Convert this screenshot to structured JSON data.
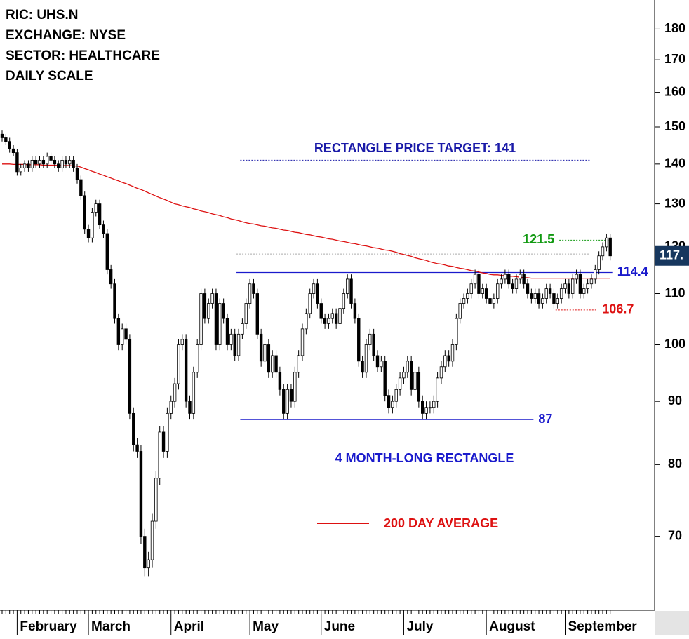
{
  "chart_data": {
    "type": "candlestick",
    "header": [
      "RIC: UHS.N",
      "EXCHANGE: NYSE",
      "SECTOR: HEALTHCARE",
      "DAILY SCALE"
    ],
    "categories": [
      null,
      null,
      null,
      null,
      "February",
      null,
      null,
      null,
      null,
      null,
      null,
      null,
      null,
      null,
      null,
      null,
      null,
      null,
      null,
      null,
      null,
      null,
      null,
      "March",
      null,
      null,
      null,
      null,
      null,
      null,
      null,
      null,
      null,
      null,
      null,
      null,
      null,
      null,
      null,
      null,
      null,
      null,
      null,
      null,
      null,
      "April",
      null,
      null,
      null,
      null,
      null,
      null,
      null,
      null,
      null,
      null,
      null,
      null,
      null,
      null,
      null,
      null,
      null,
      null,
      null,
      null,
      "May",
      null,
      null,
      null,
      null,
      null,
      null,
      null,
      null,
      null,
      null,
      null,
      null,
      null,
      null,
      null,
      null,
      null,
      null,
      "June",
      null,
      null,
      null,
      null,
      null,
      null,
      null,
      null,
      null,
      null,
      null,
      null,
      null,
      null,
      null,
      null,
      null,
      null,
      null,
      null,
      null,
      "July",
      null,
      null,
      null,
      null,
      null,
      null,
      null,
      null,
      null,
      null,
      null,
      null,
      null,
      null,
      null,
      null,
      null,
      null,
      null,
      null,
      null,
      "August",
      null,
      null,
      null,
      null,
      null,
      null,
      null,
      null,
      null,
      null,
      null,
      null,
      null,
      null,
      null,
      null,
      null,
      null,
      null,
      null,
      "September",
      null,
      null,
      null,
      null,
      null,
      null,
      null,
      null,
      null,
      null,
      null,
      null
    ],
    "open": [
      148,
      147,
      146,
      144,
      143,
      138,
      139,
      140,
      139,
      141,
      140,
      141,
      140,
      142,
      141,
      140,
      139,
      141,
      140,
      141,
      139,
      136,
      132,
      124,
      122,
      128,
      130,
      125,
      123,
      115,
      112,
      105,
      100,
      103,
      101,
      88,
      83,
      82,
      70,
      66,
      67,
      72,
      78,
      85,
      82,
      88,
      90,
      93,
      100,
      101,
      90,
      88,
      95,
      100,
      110,
      105,
      108,
      110,
      100,
      108,
      105,
      100,
      102,
      98,
      102,
      104,
      108,
      112,
      110,
      102,
      97,
      100,
      95,
      98,
      95,
      92,
      88,
      92,
      90,
      95,
      98,
      103,
      106,
      110,
      112,
      108,
      105,
      104,
      105,
      106,
      104,
      107,
      110,
      113,
      108,
      105,
      97,
      95,
      100,
      102,
      98,
      96,
      97,
      91,
      89,
      90,
      92,
      94,
      95,
      97,
      92,
      95,
      90,
      88,
      89,
      89,
      90,
      94,
      96,
      98,
      97,
      100,
      105,
      108,
      109,
      110,
      112,
      114,
      110,
      111,
      109,
      108,
      109,
      112,
      113,
      114,
      112,
      111,
      113,
      114,
      112,
      110,
      109,
      110,
      108,
      109,
      111,
      110,
      108,
      109,
      111,
      112,
      110,
      113,
      114,
      110,
      111,
      112,
      113,
      115,
      118,
      120,
      122
    ],
    "high": [
      149,
      148,
      147,
      145,
      144,
      140,
      141,
      141,
      142,
      142,
      142,
      142,
      143,
      143,
      142,
      141,
      142,
      142,
      142,
      142,
      140,
      137,
      133,
      125,
      129,
      131,
      131,
      126,
      124,
      116,
      113,
      106,
      104,
      104,
      102,
      89,
      84,
      83,
      71,
      68,
      73,
      79,
      86,
      86,
      89,
      91,
      94,
      101,
      102,
      102,
      91,
      96,
      101,
      111,
      111,
      109,
      111,
      111,
      109,
      109,
      106,
      103,
      103,
      103,
      105,
      109,
      113,
      113,
      111,
      103,
      101,
      101,
      99,
      99,
      96,
      93,
      93,
      93,
      96,
      99,
      104,
      107,
      111,
      113,
      113,
      109,
      106,
      106,
      107,
      107,
      108,
      111,
      114,
      114,
      109,
      106,
      98,
      101,
      103,
      103,
      99,
      98,
      98,
      92,
      91,
      93,
      95,
      96,
      98,
      98,
      96,
      96,
      91,
      90,
      90,
      91,
      95,
      97,
      99,
      99,
      101,
      106,
      109,
      110,
      111,
      113,
      115,
      115,
      112,
      112,
      110,
      110,
      113,
      114,
      115,
      115,
      113,
      114,
      115,
      115,
      113,
      111,
      111,
      111,
      110,
      112,
      112,
      111,
      110,
      112,
      113,
      113,
      114,
      115,
      115,
      112,
      113,
      114,
      116,
      119,
      121,
      123,
      123
    ],
    "low": [
      146,
      145,
      143,
      142,
      137,
      137,
      138,
      138,
      138,
      139,
      139,
      139,
      139,
      140,
      139,
      138,
      138,
      139,
      139,
      138,
      135,
      131,
      123,
      121,
      121,
      127,
      124,
      122,
      114,
      111,
      104,
      99,
      99,
      100,
      87,
      82,
      81,
      69,
      65,
      65,
      66,
      71,
      77,
      81,
      81,
      87,
      89,
      92,
      99,
      89,
      87,
      87,
      94,
      99,
      104,
      104,
      107,
      99,
      99,
      104,
      99,
      99,
      97,
      97,
      101,
      103,
      107,
      109,
      101,
      96,
      96,
      94,
      94,
      94,
      91,
      87,
      87,
      89,
      89,
      94,
      97,
      102,
      105,
      109,
      107,
      104,
      103,
      103,
      104,
      103,
      103,
      106,
      109,
      107,
      104,
      96,
      94,
      94,
      99,
      97,
      95,
      95,
      90,
      88,
      88,
      89,
      91,
      93,
      94,
      91,
      91,
      89,
      87,
      87,
      88,
      88,
      89,
      93,
      95,
      96,
      96,
      99,
      104,
      107,
      108,
      109,
      111,
      109,
      109,
      108,
      107,
      107,
      108,
      111,
      112,
      111,
      110,
      110,
      112,
      111,
      109,
      108,
      108,
      107,
      107,
      108,
      109,
      107,
      107,
      108,
      110,
      109,
      109,
      112,
      109,
      109,
      110,
      111,
      112,
      114,
      117,
      119,
      117
    ],
    "close": [
      147,
      146,
      144,
      143,
      138,
      139,
      140,
      139,
      141,
      140,
      141,
      140,
      142,
      141,
      140,
      139,
      141,
      140,
      141,
      139,
      136,
      132,
      124,
      122,
      128,
      130,
      125,
      123,
      115,
      112,
      105,
      100,
      103,
      101,
      88,
      83,
      82,
      70,
      66,
      67,
      72,
      78,
      85,
      82,
      88,
      90,
      93,
      100,
      101,
      90,
      88,
      95,
      100,
      110,
      105,
      108,
      110,
      100,
      108,
      105,
      100,
      102,
      98,
      102,
      104,
      108,
      112,
      110,
      102,
      97,
      100,
      95,
      98,
      95,
      92,
      88,
      92,
      90,
      95,
      98,
      103,
      106,
      110,
      112,
      108,
      105,
      104,
      105,
      106,
      104,
      107,
      110,
      113,
      108,
      105,
      97,
      95,
      100,
      102,
      98,
      96,
      97,
      91,
      89,
      90,
      92,
      94,
      95,
      97,
      92,
      95,
      90,
      88,
      89,
      89,
      90,
      94,
      96,
      98,
      97,
      100,
      105,
      108,
      109,
      110,
      112,
      114,
      110,
      111,
      109,
      108,
      109,
      112,
      113,
      114,
      112,
      111,
      113,
      114,
      112,
      110,
      109,
      110,
      108,
      109,
      111,
      110,
      108,
      109,
      111,
      112,
      110,
      113,
      114,
      110,
      111,
      112,
      113,
      115,
      118,
      120,
      122,
      118
    ],
    "series": [
      {
        "name": "200 DAY AVERAGE",
        "color": "#dd1111",
        "values": [
          140,
          140,
          140,
          139.9,
          139.9,
          139.9,
          139.9,
          139.8,
          139.8,
          139.8,
          139.8,
          139.7,
          139.7,
          139.7,
          139.7,
          139.6,
          139.6,
          139.6,
          139.6,
          139.5,
          139.5,
          139.2,
          138.8,
          138.5,
          138.1,
          137.8,
          137.4,
          137.1,
          136.7,
          136.4,
          136.0,
          135.7,
          135.3,
          135.0,
          134.6,
          134.2,
          133.8,
          133.5,
          133.1,
          132.7,
          132.3,
          131.9,
          131.5,
          131.2,
          130.8,
          130.4,
          130.0,
          129.8,
          129.5,
          129.3,
          129.1,
          128.8,
          128.6,
          128.3,
          128.1,
          127.9,
          127.6,
          127.4,
          127.2,
          126.9,
          126.7,
          126.4,
          126.2,
          126.0,
          125.7,
          125.5,
          125.3,
          125.2,
          125.0,
          124.8,
          124.7,
          124.5,
          124.3,
          124.2,
          124.0,
          123.8,
          123.7,
          123.5,
          123.3,
          123.2,
          123.0,
          122.8,
          122.7,
          122.5,
          122.3,
          122.2,
          122.0,
          121.8,
          121.7,
          121.5,
          121.3,
          121.2,
          121.0,
          120.8,
          120.7,
          120.5,
          120.3,
          120.2,
          120.0,
          119.8,
          119.7,
          119.5,
          119.3,
          119.2,
          119.0,
          118.8,
          118.5,
          118.3,
          118.1,
          117.9,
          117.6,
          117.4,
          117.2,
          117.0,
          116.7,
          116.5,
          116.3,
          116.2,
          116.0,
          115.8,
          115.7,
          115.5,
          115.3,
          115.2,
          115.0,
          114.8,
          114.7,
          114.5,
          114.3,
          114.2,
          114.0,
          113.9,
          113.9,
          113.8,
          113.7,
          113.6,
          113.6,
          113.5,
          113.4,
          113.3,
          113.3,
          113.2,
          113.2,
          113.2,
          113.2,
          113.2,
          113.2,
          113.2,
          113.2,
          113.2,
          113.2,
          113.2,
          113.2,
          113.2,
          113.2,
          113.2,
          113.2,
          113.2,
          113.2,
          113.2,
          113.2,
          113.2,
          113.2
        ]
      }
    ],
    "levels": [
      {
        "value": 141,
        "label": "RECTANGLE PRICE TARGET: 141",
        "color": "#1a1aa8",
        "style": "dotted"
      },
      {
        "value": 118.4,
        "color": "#aaaaaa",
        "style": "dotted"
      },
      {
        "value": 121.5,
        "label": "121.5",
        "color": "#119911",
        "style": "dotted"
      },
      {
        "value": 114.4,
        "label": "114.4",
        "color": "#1a1acc",
        "style": "solid"
      },
      {
        "value": 106.7,
        "label": "106.7",
        "color": "#dd1111",
        "style": "dotted"
      },
      {
        "value": 87,
        "label": "87",
        "color": "#1a1acc",
        "style": "solid"
      }
    ],
    "annotation": "4 MONTH-LONG RECTANGLE",
    "last_price_label": "117.",
    "log_scale": true,
    "ylim": [
      61,
      190
    ],
    "yticks": [
      70,
      80,
      90,
      100,
      110,
      120,
      130,
      140,
      150,
      160,
      170,
      180
    ]
  }
}
